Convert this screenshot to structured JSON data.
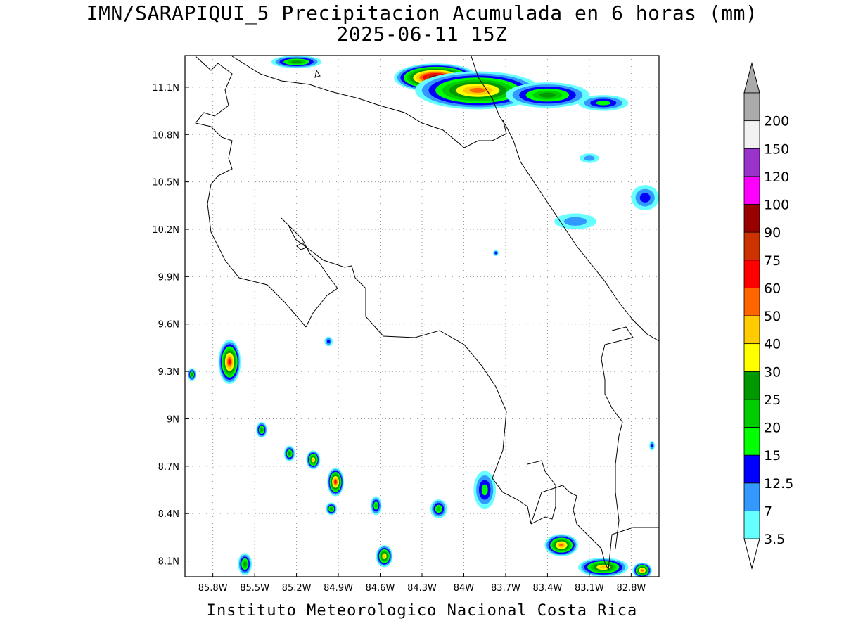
{
  "title": {
    "line1": "IMN/SARAPIQUI_5 Precipitacion Acumulada en 6 horas (mm)",
    "line2": "2025-06-11 15Z"
  },
  "footer": "Instituto Meteorologico Nacional Costa Rica",
  "map": {
    "lon_range": [
      -86.0,
      -82.6
    ],
    "lat_range": [
      8.0,
      11.3
    ],
    "grid": "dotted",
    "x_ticks": [
      {
        "value": -85.8,
        "label": "85.8W"
      },
      {
        "value": -85.5,
        "label": "85.5W"
      },
      {
        "value": -85.2,
        "label": "85.2W"
      },
      {
        "value": -84.9,
        "label": "84.9W"
      },
      {
        "value": -84.6,
        "label": "84.6W"
      },
      {
        "value": -84.3,
        "label": "84.3W"
      },
      {
        "value": -84.0,
        "label": "84W"
      },
      {
        "value": -83.7,
        "label": "83.7W"
      },
      {
        "value": -83.4,
        "label": "83.4W"
      },
      {
        "value": -83.1,
        "label": "83.1W"
      },
      {
        "value": -82.8,
        "label": "82.8W"
      }
    ],
    "y_ticks": [
      {
        "value": 8.1,
        "label": "8.1N"
      },
      {
        "value": 8.4,
        "label": "8.4N"
      },
      {
        "value": 8.7,
        "label": "8.7N"
      },
      {
        "value": 9.0,
        "label": "9N"
      },
      {
        "value": 9.3,
        "label": "9.3N"
      },
      {
        "value": 9.6,
        "label": "9.6N"
      },
      {
        "value": 9.9,
        "label": "9.9N"
      },
      {
        "value": 10.2,
        "label": "10.2N"
      },
      {
        "value": 10.5,
        "label": "10.5N"
      },
      {
        "value": 10.8,
        "label": "10.8N"
      },
      {
        "value": 11.1,
        "label": "11.1N"
      }
    ]
  },
  "colorbar": {
    "levels": [
      {
        "label": "3.5",
        "color": "#66ffff"
      },
      {
        "label": "7",
        "color": "#3399ff"
      },
      {
        "label": "12.5",
        "color": "#0000ff"
      },
      {
        "label": "15",
        "color": "#00ff00"
      },
      {
        "label": "20",
        "color": "#00cc00"
      },
      {
        "label": "25",
        "color": "#009900"
      },
      {
        "label": "30",
        "color": "#ffff00"
      },
      {
        "label": "40",
        "color": "#ffcc00"
      },
      {
        "label": "50",
        "color": "#ff6600"
      },
      {
        "label": "60",
        "color": "#ff0000"
      },
      {
        "label": "75",
        "color": "#cc3300"
      },
      {
        "label": "90",
        "color": "#990000"
      },
      {
        "label": "100",
        "color": "#ff00ff"
      },
      {
        "label": "120",
        "color": "#9933cc"
      },
      {
        "label": "150",
        "color": "#f2f2f2"
      },
      {
        "label": "200",
        "color": "#aaaaaa"
      }
    ],
    "under_color": "#ffffff",
    "over_color": "#aaaaaa"
  },
  "precip_cells": [
    {
      "lon": -84.2,
      "lat": 11.16,
      "rx": 0.3,
      "ry": 0.09,
      "level": 12
    },
    {
      "lon": -83.9,
      "lat": 11.08,
      "rx": 0.45,
      "ry": 0.12,
      "level": 8
    },
    {
      "lon": -83.4,
      "lat": 11.05,
      "rx": 0.3,
      "ry": 0.08,
      "level": 5
    },
    {
      "lon": -85.2,
      "lat": 11.26,
      "rx": 0.18,
      "ry": 0.04,
      "level": 5
    },
    {
      "lon": -83.0,
      "lat": 11.0,
      "rx": 0.18,
      "ry": 0.05,
      "level": 3
    },
    {
      "lon": -85.68,
      "lat": 9.36,
      "rx": 0.08,
      "ry": 0.14,
      "level": 9
    },
    {
      "lon": -84.92,
      "lat": 8.6,
      "rx": 0.06,
      "ry": 0.09,
      "level": 9
    },
    {
      "lon": -85.08,
      "lat": 8.74,
      "rx": 0.05,
      "ry": 0.06,
      "level": 7
    },
    {
      "lon": -85.25,
      "lat": 8.78,
      "rx": 0.04,
      "ry": 0.05,
      "level": 5
    },
    {
      "lon": -85.45,
      "lat": 8.93,
      "rx": 0.04,
      "ry": 0.05,
      "level": 5
    },
    {
      "lon": -84.95,
      "lat": 8.43,
      "rx": 0.04,
      "ry": 0.04,
      "level": 5
    },
    {
      "lon": -84.63,
      "lat": 8.45,
      "rx": 0.04,
      "ry": 0.06,
      "level": 4
    },
    {
      "lon": -84.57,
      "lat": 8.13,
      "rx": 0.06,
      "ry": 0.07,
      "level": 7
    },
    {
      "lon": -85.57,
      "lat": 8.08,
      "rx": 0.05,
      "ry": 0.07,
      "level": 5
    },
    {
      "lon": -83.85,
      "lat": 8.55,
      "rx": 0.08,
      "ry": 0.12,
      "level": 3
    },
    {
      "lon": -84.18,
      "lat": 8.43,
      "rx": 0.06,
      "ry": 0.06,
      "level": 4
    },
    {
      "lon": -83.3,
      "lat": 8.2,
      "rx": 0.12,
      "ry": 0.07,
      "level": 8
    },
    {
      "lon": -83.0,
      "lat": 8.06,
      "rx": 0.18,
      "ry": 0.06,
      "level": 7
    },
    {
      "lon": -82.72,
      "lat": 8.04,
      "rx": 0.07,
      "ry": 0.05,
      "level": 8
    },
    {
      "lon": -82.7,
      "lat": 10.4,
      "rx": 0.1,
      "ry": 0.08,
      "level": 2
    },
    {
      "lon": -83.2,
      "lat": 10.25,
      "rx": 0.15,
      "ry": 0.05,
      "level": 1
    },
    {
      "lon": -84.97,
      "lat": 9.49,
      "rx": 0.03,
      "ry": 0.03,
      "level": 2
    },
    {
      "lon": -83.77,
      "lat": 10.05,
      "rx": 0.02,
      "ry": 0.02,
      "level": 2
    },
    {
      "lon": -83.1,
      "lat": 10.65,
      "rx": 0.07,
      "ry": 0.03,
      "level": 1
    },
    {
      "lon": -85.95,
      "lat": 9.28,
      "rx": 0.03,
      "ry": 0.04,
      "level": 5
    },
    {
      "lon": -82.65,
      "lat": 8.83,
      "rx": 0.02,
      "ry": 0.03,
      "level": 2
    }
  ]
}
